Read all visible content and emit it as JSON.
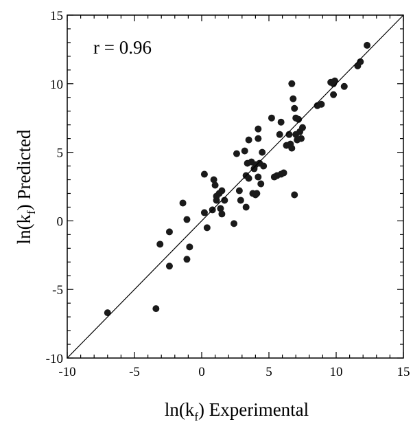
{
  "chart_data": {
    "type": "scatter",
    "title": "",
    "xlabel": {
      "prefix": "ln(k",
      "sub": "f",
      "suffix": ") Experimental"
    },
    "ylabel": {
      "prefix": "ln(k",
      "sub": "f",
      "suffix": ") Predicted"
    },
    "xlim": [
      -10,
      15
    ],
    "ylim": [
      -10,
      15
    ],
    "xticks": [
      -10,
      -5,
      0,
      5,
      10,
      15
    ],
    "yticks": [
      -10,
      -5,
      0,
      5,
      10,
      15
    ],
    "x_tick_labels": [
      "-10",
      "-5",
      "0",
      "5",
      "10",
      "15"
    ],
    "y_tick_labels": [
      "-10",
      "-5",
      "0",
      "5",
      "10",
      "15"
    ],
    "grid": false,
    "annotation": "r = 0.96",
    "reference_line": {
      "type": "identity",
      "from": [
        -10,
        -10
      ],
      "to": [
        15,
        15
      ]
    },
    "marker_color": "#1a1a1a",
    "points": [
      {
        "x": -7.0,
        "y": -6.7
      },
      {
        "x": -3.4,
        "y": -6.4
      },
      {
        "x": -3.1,
        "y": -1.7
      },
      {
        "x": -2.4,
        "y": -0.8
      },
      {
        "x": -2.4,
        "y": -3.3
      },
      {
        "x": -1.4,
        "y": 1.3
      },
      {
        "x": -1.1,
        "y": 0.1
      },
      {
        "x": -1.1,
        "y": -2.8
      },
      {
        "x": -0.9,
        "y": -1.9
      },
      {
        "x": 0.2,
        "y": 3.4
      },
      {
        "x": 0.2,
        "y": 0.6
      },
      {
        "x": 0.4,
        "y": -0.5
      },
      {
        "x": 0.8,
        "y": 0.8
      },
      {
        "x": 0.9,
        "y": 3.0
      },
      {
        "x": 1.0,
        "y": 2.6
      },
      {
        "x": 1.1,
        "y": 1.8
      },
      {
        "x": 1.1,
        "y": 1.5
      },
      {
        "x": 1.3,
        "y": 2.0
      },
      {
        "x": 1.4,
        "y": 0.9
      },
      {
        "x": 1.5,
        "y": 0.5
      },
      {
        "x": 1.5,
        "y": 2.2
      },
      {
        "x": 1.7,
        "y": 1.5
      },
      {
        "x": 2.4,
        "y": -0.2
      },
      {
        "x": 2.6,
        "y": 4.9
      },
      {
        "x": 2.8,
        "y": 2.2
      },
      {
        "x": 2.9,
        "y": 1.5
      },
      {
        "x": 3.2,
        "y": 5.1
      },
      {
        "x": 3.3,
        "y": 3.3
      },
      {
        "x": 3.3,
        "y": 1.0
      },
      {
        "x": 3.4,
        "y": 4.2
      },
      {
        "x": 3.5,
        "y": 3.1
      },
      {
        "x": 3.5,
        "y": 5.9
      },
      {
        "x": 3.7,
        "y": 4.3
      },
      {
        "x": 3.8,
        "y": 2.0
      },
      {
        "x": 3.9,
        "y": 3.8
      },
      {
        "x": 4.0,
        "y": 4.1
      },
      {
        "x": 4.0,
        "y": 1.9
      },
      {
        "x": 4.1,
        "y": 2.0
      },
      {
        "x": 4.2,
        "y": 6.0
      },
      {
        "x": 4.2,
        "y": 3.2
      },
      {
        "x": 4.2,
        "y": 6.7
      },
      {
        "x": 4.3,
        "y": 4.2
      },
      {
        "x": 4.4,
        "y": 2.7
      },
      {
        "x": 4.5,
        "y": 5.0
      },
      {
        "x": 4.6,
        "y": 4.0
      },
      {
        "x": 5.2,
        "y": 7.5
      },
      {
        "x": 5.4,
        "y": 3.2
      },
      {
        "x": 5.6,
        "y": 3.3
      },
      {
        "x": 5.8,
        "y": 6.3
      },
      {
        "x": 5.9,
        "y": 7.2
      },
      {
        "x": 5.9,
        "y": 3.4
      },
      {
        "x": 6.1,
        "y": 3.5
      },
      {
        "x": 6.3,
        "y": 5.5
      },
      {
        "x": 6.5,
        "y": 6.3
      },
      {
        "x": 6.6,
        "y": 5.6
      },
      {
        "x": 6.7,
        "y": 10.0
      },
      {
        "x": 6.7,
        "y": 5.3
      },
      {
        "x": 6.8,
        "y": 8.9
      },
      {
        "x": 6.9,
        "y": 8.2
      },
      {
        "x": 6.9,
        "y": 1.9
      },
      {
        "x": 7.0,
        "y": 6.3
      },
      {
        "x": 7.0,
        "y": 7.5
      },
      {
        "x": 7.1,
        "y": 5.9
      },
      {
        "x": 7.2,
        "y": 7.4
      },
      {
        "x": 7.3,
        "y": 6.5
      },
      {
        "x": 7.4,
        "y": 6.0
      },
      {
        "x": 7.5,
        "y": 6.8
      },
      {
        "x": 8.6,
        "y": 8.4
      },
      {
        "x": 8.9,
        "y": 8.5
      },
      {
        "x": 9.6,
        "y": 10.1
      },
      {
        "x": 9.7,
        "y": 10.1
      },
      {
        "x": 9.8,
        "y": 10.0
      },
      {
        "x": 9.8,
        "y": 9.2
      },
      {
        "x": 9.9,
        "y": 10.2
      },
      {
        "x": 10.6,
        "y": 9.8
      },
      {
        "x": 11.6,
        "y": 11.3
      },
      {
        "x": 11.8,
        "y": 11.6
      },
      {
        "x": 12.3,
        "y": 12.8
      }
    ]
  }
}
